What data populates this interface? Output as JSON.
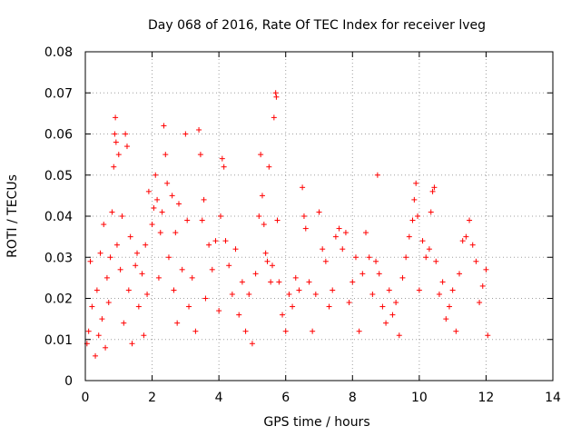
{
  "chart_data": {
    "type": "scatter",
    "title": "Day 068 of 2016, Rate Of TEC Index for receiver lveg",
    "xlabel": "GPS time / hours",
    "ylabel": "ROTI / TECUs",
    "xlim": [
      0,
      14
    ],
    "ylim": [
      0,
      0.08
    ],
    "xticks": [
      0,
      2,
      4,
      6,
      8,
      10,
      12,
      14
    ],
    "xtick_labels": [
      "0",
      "2",
      "4",
      "6",
      "8",
      "10",
      "12",
      "14"
    ],
    "yticks": [
      0,
      0.01,
      0.02,
      0.03,
      0.04,
      0.05,
      0.06,
      0.07,
      0.08
    ],
    "ytick_labels": [
      "0",
      "0.01",
      "0.02",
      "0.03",
      "0.04",
      "0.05",
      "0.06",
      "0.07",
      "0.08"
    ],
    "grid": true,
    "marker": "+",
    "marker_color": "#ff0000",
    "series": [
      {
        "name": "ROTI",
        "points": [
          [
            0.05,
            0.009
          ],
          [
            0.1,
            0.012
          ],
          [
            0.15,
            0.029
          ],
          [
            0.2,
            0.018
          ],
          [
            0.3,
            0.006
          ],
          [
            0.35,
            0.022
          ],
          [
            0.4,
            0.011
          ],
          [
            0.45,
            0.031
          ],
          [
            0.5,
            0.015
          ],
          [
            0.55,
            0.038
          ],
          [
            0.6,
            0.008
          ],
          [
            0.65,
            0.025
          ],
          [
            0.7,
            0.019
          ],
          [
            0.75,
            0.03
          ],
          [
            0.8,
            0.041
          ],
          [
            0.85,
            0.052
          ],
          [
            0.88,
            0.06
          ],
          [
            0.9,
            0.064
          ],
          [
            0.92,
            0.058
          ],
          [
            0.95,
            0.033
          ],
          [
            1.0,
            0.055
          ],
          [
            1.05,
            0.027
          ],
          [
            1.1,
            0.04
          ],
          [
            1.15,
            0.014
          ],
          [
            1.2,
            0.06
          ],
          [
            1.25,
            0.057
          ],
          [
            1.3,
            0.022
          ],
          [
            1.35,
            0.035
          ],
          [
            1.4,
            0.009
          ],
          [
            1.5,
            0.028
          ],
          [
            1.55,
            0.031
          ],
          [
            1.6,
            0.018
          ],
          [
            1.7,
            0.026
          ],
          [
            1.75,
            0.011
          ],
          [
            1.8,
            0.033
          ],
          [
            1.85,
            0.021
          ],
          [
            1.9,
            0.046
          ],
          [
            2.0,
            0.038
          ],
          [
            2.05,
            0.042
          ],
          [
            2.1,
            0.05
          ],
          [
            2.15,
            0.044
          ],
          [
            2.2,
            0.025
          ],
          [
            2.25,
            0.036
          ],
          [
            2.3,
            0.041
          ],
          [
            2.35,
            0.062
          ],
          [
            2.4,
            0.055
          ],
          [
            2.45,
            0.048
          ],
          [
            2.5,
            0.03
          ],
          [
            2.6,
            0.045
          ],
          [
            2.65,
            0.022
          ],
          [
            2.7,
            0.036
          ],
          [
            2.75,
            0.014
          ],
          [
            2.8,
            0.043
          ],
          [
            2.9,
            0.027
          ],
          [
            3.0,
            0.06
          ],
          [
            3.05,
            0.039
          ],
          [
            3.1,
            0.018
          ],
          [
            3.2,
            0.025
          ],
          [
            3.3,
            0.012
          ],
          [
            3.4,
            0.061
          ],
          [
            3.45,
            0.055
          ],
          [
            3.5,
            0.039
          ],
          [
            3.55,
            0.044
          ],
          [
            3.6,
            0.02
          ],
          [
            3.7,
            0.033
          ],
          [
            3.8,
            0.027
          ],
          [
            3.9,
            0.034
          ],
          [
            4.0,
            0.017
          ],
          [
            4.05,
            0.04
          ],
          [
            4.1,
            0.054
          ],
          [
            4.15,
            0.052
          ],
          [
            4.2,
            0.034
          ],
          [
            4.3,
            0.028
          ],
          [
            4.4,
            0.021
          ],
          [
            4.5,
            0.032
          ],
          [
            4.6,
            0.016
          ],
          [
            4.7,
            0.024
          ],
          [
            4.8,
            0.012
          ],
          [
            4.9,
            0.021
          ],
          [
            5.0,
            0.009
          ],
          [
            5.1,
            0.026
          ],
          [
            5.2,
            0.04
          ],
          [
            5.25,
            0.055
          ],
          [
            5.3,
            0.045
          ],
          [
            5.35,
            0.038
          ],
          [
            5.4,
            0.031
          ],
          [
            5.45,
            0.029
          ],
          [
            5.5,
            0.052
          ],
          [
            5.55,
            0.024
          ],
          [
            5.6,
            0.028
          ],
          [
            5.65,
            0.064
          ],
          [
            5.7,
            0.07
          ],
          [
            5.72,
            0.069
          ],
          [
            5.75,
            0.039
          ],
          [
            5.8,
            0.024
          ],
          [
            5.9,
            0.016
          ],
          [
            6.0,
            0.012
          ],
          [
            6.1,
            0.021
          ],
          [
            6.2,
            0.018
          ],
          [
            6.3,
            0.025
          ],
          [
            6.4,
            0.022
          ],
          [
            6.5,
            0.047
          ],
          [
            6.55,
            0.04
          ],
          [
            6.6,
            0.037
          ],
          [
            6.7,
            0.024
          ],
          [
            6.8,
            0.012
          ],
          [
            6.9,
            0.021
          ],
          [
            7.0,
            0.041
          ],
          [
            7.1,
            0.032
          ],
          [
            7.2,
            0.029
          ],
          [
            7.3,
            0.018
          ],
          [
            7.4,
            0.022
          ],
          [
            7.5,
            0.035
          ],
          [
            7.6,
            0.037
          ],
          [
            7.7,
            0.032
          ],
          [
            7.8,
            0.036
          ],
          [
            7.9,
            0.019
          ],
          [
            8.0,
            0.024
          ],
          [
            8.1,
            0.03
          ],
          [
            8.2,
            0.012
          ],
          [
            8.3,
            0.026
          ],
          [
            8.4,
            0.036
          ],
          [
            8.5,
            0.03
          ],
          [
            8.6,
            0.021
          ],
          [
            8.7,
            0.029
          ],
          [
            8.75,
            0.05
          ],
          [
            8.8,
            0.026
          ],
          [
            8.9,
            0.018
          ],
          [
            9.0,
            0.014
          ],
          [
            9.1,
            0.022
          ],
          [
            9.2,
            0.016
          ],
          [
            9.3,
            0.019
          ],
          [
            9.4,
            0.011
          ],
          [
            9.5,
            0.025
          ],
          [
            9.6,
            0.03
          ],
          [
            9.7,
            0.035
          ],
          [
            9.8,
            0.039
          ],
          [
            9.85,
            0.044
          ],
          [
            9.9,
            0.048
          ],
          [
            9.95,
            0.04
          ],
          [
            10.0,
            0.022
          ],
          [
            10.1,
            0.034
          ],
          [
            10.2,
            0.03
          ],
          [
            10.3,
            0.032
          ],
          [
            10.35,
            0.041
          ],
          [
            10.4,
            0.046
          ],
          [
            10.45,
            0.047
          ],
          [
            10.5,
            0.029
          ],
          [
            10.6,
            0.021
          ],
          [
            10.7,
            0.024
          ],
          [
            10.8,
            0.015
          ],
          [
            10.9,
            0.018
          ],
          [
            11.0,
            0.022
          ],
          [
            11.1,
            0.012
          ],
          [
            11.2,
            0.026
          ],
          [
            11.3,
            0.034
          ],
          [
            11.4,
            0.035
          ],
          [
            11.5,
            0.039
          ],
          [
            11.6,
            0.033
          ],
          [
            11.7,
            0.029
          ],
          [
            11.8,
            0.019
          ],
          [
            11.9,
            0.023
          ],
          [
            12.0,
            0.027
          ],
          [
            12.05,
            0.011
          ]
        ]
      }
    ]
  }
}
